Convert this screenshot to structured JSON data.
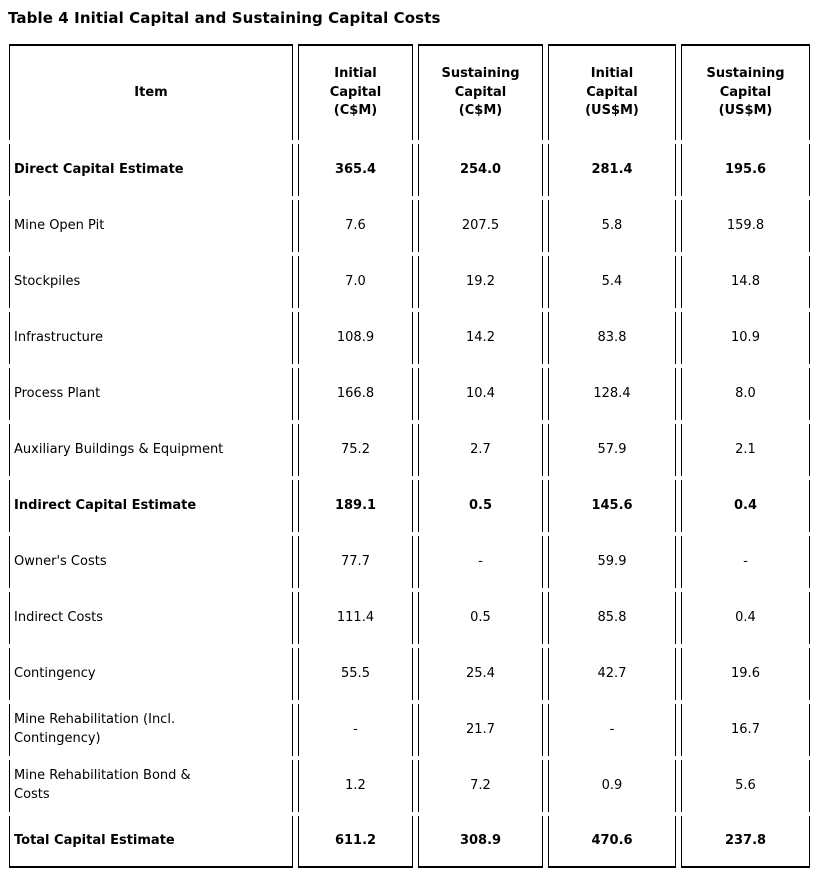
{
  "title": "Table 4 Initial Capital and Sustaining Capital Costs",
  "table": {
    "columns": [
      "Item",
      "Initial\nCapital\n(C$M)",
      "Sustaining\nCapital\n(C$M)",
      "Initial\nCapital\n(US$M)",
      "Sustaining\nCapital\n(US$M)"
    ],
    "rows": [
      {
        "item": "Direct Capital Estimate",
        "values": [
          "365.4",
          "254.0",
          "281.4",
          "195.6"
        ],
        "bold": true
      },
      {
        "item": "Mine Open Pit",
        "values": [
          "7.6",
          "207.5",
          "5.8",
          "159.8"
        ],
        "bold": false
      },
      {
        "item": "Stockpiles",
        "values": [
          "7.0",
          "19.2",
          "5.4",
          "14.8"
        ],
        "bold": false
      },
      {
        "item": "Infrastructure",
        "values": [
          "108.9",
          "14.2",
          "83.8",
          "10.9"
        ],
        "bold": false
      },
      {
        "item": "Process Plant",
        "values": [
          "166.8",
          "10.4",
          "128.4",
          "8.0"
        ],
        "bold": false
      },
      {
        "item": "Auxiliary Buildings & Equipment",
        "values": [
          "75.2",
          "2.7",
          "57.9",
          "2.1"
        ],
        "bold": false
      },
      {
        "item": "Indirect Capital Estimate",
        "values": [
          "189.1",
          "0.5",
          "145.6",
          "0.4"
        ],
        "bold": true
      },
      {
        "item": "Owner's Costs",
        "values": [
          "77.7",
          "-",
          "59.9",
          "-"
        ],
        "bold": false
      },
      {
        "item": "Indirect Costs",
        "values": [
          "111.4",
          "0.5",
          "85.8",
          "0.4"
        ],
        "bold": false
      },
      {
        "item": "Contingency",
        "values": [
          "55.5",
          "25.4",
          "42.7",
          "19.6"
        ],
        "bold": false
      },
      {
        "item": "Mine Rehabilitation (Incl.\nContingency)",
        "values": [
          "-",
          "21.7",
          "-",
          "16.7"
        ],
        "bold": false
      },
      {
        "item": "Mine Rehabilitation Bond &\nCosts",
        "values": [
          "1.2",
          "7.2",
          "0.9",
          "5.6"
        ],
        "bold": false
      },
      {
        "item": "Total Capital Estimate",
        "values": [
          "611.2",
          "308.9",
          "470.6",
          "237.8"
        ],
        "bold": true
      }
    ]
  }
}
